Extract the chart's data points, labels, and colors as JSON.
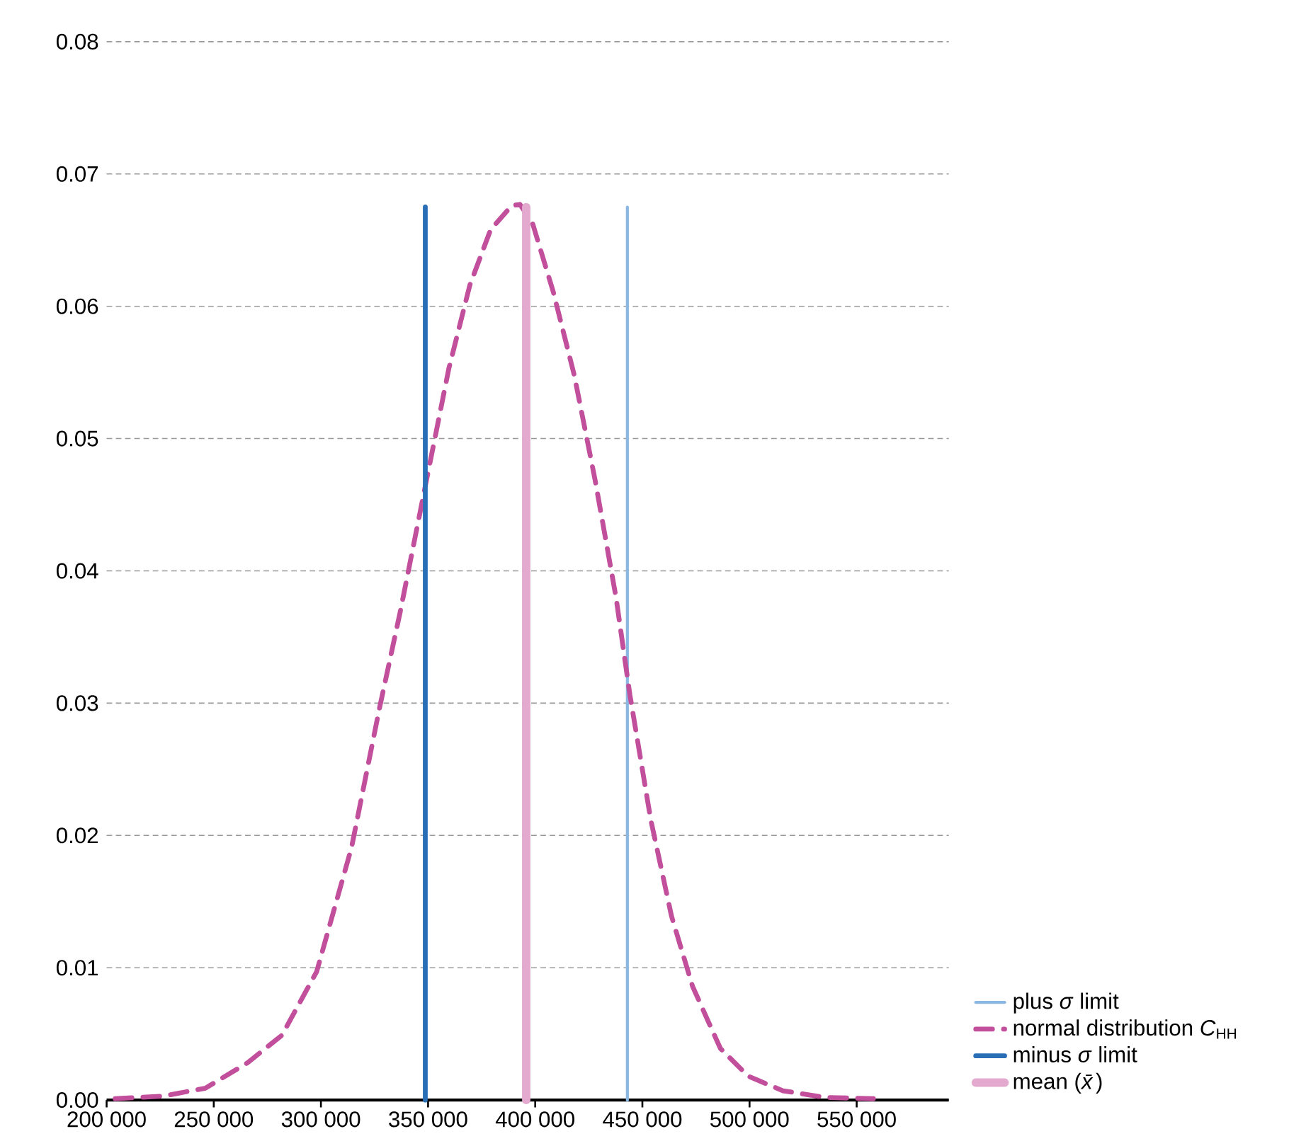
{
  "chart_data": {
    "type": "line",
    "xlim": [
      200000,
      593000
    ],
    "ylim": [
      0,
      0.08
    ],
    "xticks": [
      {
        "value": 200000,
        "label": "200 000"
      },
      {
        "value": 250000,
        "label": "250 000"
      },
      {
        "value": 300000,
        "label": "300 000"
      },
      {
        "value": 350000,
        "label": "350 000"
      },
      {
        "value": 400000,
        "label": "400 000"
      },
      {
        "value": 450000,
        "label": "450 000"
      },
      {
        "value": 500000,
        "label": "500 000"
      },
      {
        "value": 550000,
        "label": "550 000"
      }
    ],
    "yticks": [
      {
        "value": 0,
        "label": "0.00"
      },
      0.01,
      0.02,
      0.03,
      0.04,
      0.05,
      0.06,
      0.07,
      0.08
    ],
    "grid": "y",
    "legend": "bottom right",
    "series": [
      {
        "name": "plus *σ* limit",
        "color": "#8ab8e2",
        "line_style": "solid",
        "x": [
          443000,
          443000
        ],
        "values": [
          0,
          0.0675
        ]
      },
      {
        "name": "normal distribution *C*$_{HH}$",
        "color": "#c24f9c",
        "line_style": "dashed",
        "x": [
          204000,
          226600,
          246100,
          265600,
          281800,
          298000,
          314300,
          327300,
          337000,
          348700,
          359700,
          369500,
          379200,
          389000,
          392900,
          398700,
          408400,
          418200,
          427900,
          437700,
          444200,
          453900,
          463600,
          473400,
          486400,
          499400,
          515600,
          535100,
          557800
        ],
        "values": [
          0.0001,
          0.0003,
          0.0009,
          0.0028,
          0.0049,
          0.0097,
          0.0191,
          0.0296,
          0.0369,
          0.0464,
          0.0553,
          0.0616,
          0.0658,
          0.0676,
          0.0677,
          0.0663,
          0.0611,
          0.0548,
          0.0469,
          0.038,
          0.0306,
          0.0212,
          0.0139,
          0.0086,
          0.0039,
          0.0018,
          0.0007,
          0.0002,
          0.0001
        ]
      },
      {
        "name": "minus *σ* limit",
        "color": "#2a6eb6",
        "line_style": "solid",
        "x": [
          348700,
          348700
        ],
        "values": [
          0,
          0.0675
        ]
      },
      {
        "name": "mean (*x̄*)",
        "color": "#e3a9cf",
        "line_style": "solid",
        "x": [
          395800,
          395800
        ],
        "values": [
          0,
          0.0675
        ]
      }
    ]
  }
}
